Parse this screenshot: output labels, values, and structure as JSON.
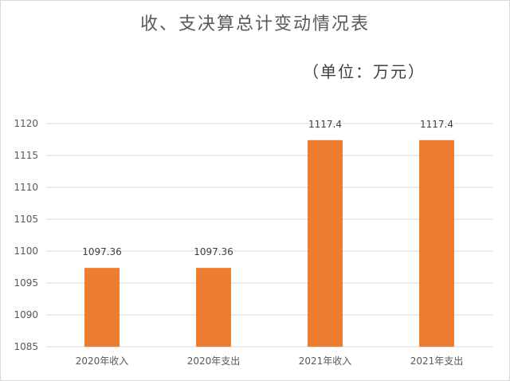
{
  "chart_data": {
    "type": "bar",
    "title": "收、支决算总计变动情况表",
    "subtitle": "（单位：万元）",
    "categories": [
      "2020年收入",
      "2020年支出",
      "2021年收入",
      "2021年支出"
    ],
    "values": [
      1097.36,
      1097.36,
      1117.4,
      1117.4
    ],
    "data_labels": [
      "1097.36",
      "1097.36",
      "1117.4",
      "1117.4"
    ],
    "ylim": [
      1085,
      1120
    ],
    "yticks": [
      1085,
      1090,
      1095,
      1100,
      1105,
      1110,
      1115,
      1120
    ],
    "grid": true,
    "legend": "none",
    "bar_color": "#ED7D31",
    "grid_color": "#D9D9D9"
  }
}
